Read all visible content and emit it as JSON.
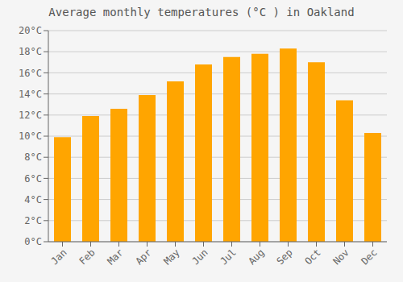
{
  "chart_data": {
    "type": "bar",
    "title": "Average monthly temperatures (°C ) in Oakland",
    "categories": [
      "Jan",
      "Feb",
      "Mar",
      "Apr",
      "May",
      "Jun",
      "Jul",
      "Aug",
      "Sep",
      "Oct",
      "Nov",
      "Dec"
    ],
    "values": [
      9.9,
      11.9,
      12.6,
      13.9,
      15.2,
      16.8,
      17.5,
      17.8,
      18.3,
      17.0,
      13.4,
      10.3
    ],
    "color": "#FFA500",
    "ylim": [
      0,
      20
    ],
    "yticks": [
      {
        "value": 0,
        "label": "0°C"
      },
      {
        "value": 2,
        "label": "2°C"
      },
      {
        "value": 4,
        "label": "4°C"
      },
      {
        "value": 6,
        "label": "6°C"
      },
      {
        "value": 8,
        "label": "8°C"
      },
      {
        "value": 10,
        "label": "10°C"
      },
      {
        "value": 12,
        "label": "12°C"
      },
      {
        "value": 14,
        "label": "14°C"
      },
      {
        "value": 16,
        "label": "16°C"
      },
      {
        "value": 18,
        "label": "18°C"
      },
      {
        "value": 20,
        "label": "20°C"
      }
    ],
    "grid": true
  }
}
